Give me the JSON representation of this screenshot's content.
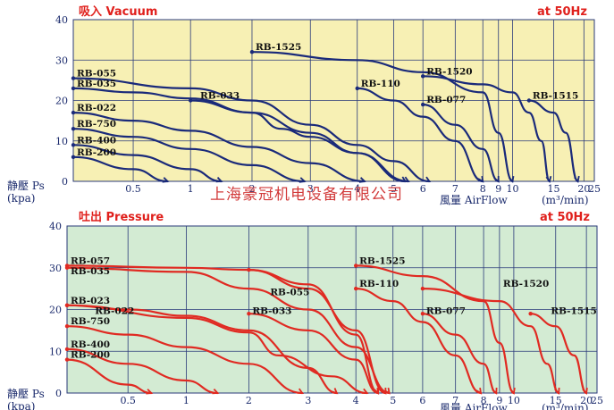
{
  "watermark": "上海豪冠机电设备有限公司",
  "colors": {
    "vacuum_bg": "#f7f0b4",
    "pressure_bg": "#d3ebd3",
    "vacuum_curve": "#1a2a7a",
    "pressure_curve": "#e02a22",
    "grid": "#2a3a7a",
    "title_red": "#e0201c"
  },
  "chart_data": [
    {
      "type": "line",
      "title": "吸入 Vacuum",
      "frequency": "at 50Hz",
      "ylabel": "静壓 Ps",
      "yunit": "(kpa)",
      "xlabel": "風量 AirFlow",
      "xunit": "(m³/min)",
      "ylim": [
        0,
        40
      ],
      "yticks": [
        "0",
        "10",
        "20",
        "30",
        "40"
      ],
      "xticks": [
        "0.5",
        "1",
        "2",
        "3",
        "4",
        "5",
        "6",
        "7",
        "8",
        "9",
        "10",
        "15",
        "20",
        "25"
      ],
      "grid": true,
      "series": [
        {
          "name": "RB-200",
          "values": [
            [
              0,
              6
            ],
            [
              0.5,
              3
            ],
            [
              0.8,
              0
            ]
          ]
        },
        {
          "name": "RB-400",
          "values": [
            [
              0,
              9
            ],
            [
              0.5,
              6.5
            ],
            [
              1,
              3
            ],
            [
              1.5,
              0
            ]
          ]
        },
        {
          "name": "RB-750",
          "values": [
            [
              0,
              13
            ],
            [
              0.5,
              11
            ],
            [
              1,
              8
            ],
            [
              2,
              4
            ],
            [
              2.9,
              0
            ]
          ]
        },
        {
          "name": "RB-022",
          "values": [
            [
              0,
              17
            ],
            [
              0.5,
              15
            ],
            [
              1,
              12.5
            ],
            [
              2,
              8.5
            ],
            [
              3,
              4.5
            ],
            [
              4.2,
              0
            ]
          ]
        },
        {
          "name": "RB-035",
          "values": [
            [
              0,
              23
            ],
            [
              0.5,
              22
            ],
            [
              1,
              20.5
            ],
            [
              2,
              17
            ],
            [
              3,
              12
            ],
            [
              4,
              7
            ],
            [
              5.5,
              0
            ]
          ]
        },
        {
          "name": "RB-055",
          "values": [
            [
              0,
              25.5
            ],
            [
              1,
              23
            ],
            [
              2,
              20
            ],
            [
              3,
              14
            ],
            [
              4,
              9
            ],
            [
              5,
              5
            ],
            [
              6.2,
              0
            ]
          ]
        },
        {
          "name": "RB-033",
          "values": [
            [
              1,
              20
            ],
            [
              2,
              17
            ],
            [
              2.5,
              13
            ],
            [
              3,
              11
            ],
            [
              4,
              7
            ],
            [
              5.4,
              0
            ]
          ]
        },
        {
          "name": "RB-1525",
          "values": [
            [
              2,
              32
            ],
            [
              4,
              30
            ],
            [
              6,
              27
            ],
            [
              8,
              22
            ],
            [
              9,
              12
            ],
            [
              10,
              0
            ]
          ]
        },
        {
          "name": "RB-110",
          "values": [
            [
              4,
              23
            ],
            [
              5,
              20
            ],
            [
              6,
              16
            ],
            [
              7,
              10
            ],
            [
              8,
              0
            ]
          ]
        },
        {
          "name": "RB-077",
          "values": [
            [
              6,
              19
            ],
            [
              7,
              14
            ],
            [
              8,
              8
            ],
            [
              9,
              0
            ]
          ]
        },
        {
          "name": "RB-1520",
          "values": [
            [
              6,
              26
            ],
            [
              8,
              24
            ],
            [
              10,
              22
            ],
            [
              12,
              17
            ],
            [
              13.5,
              10
            ],
            [
              14.5,
              0
            ]
          ]
        },
        {
          "name": "RB-1515",
          "values": [
            [
              12,
              20
            ],
            [
              15,
              17
            ],
            [
              17,
              12
            ],
            [
              19,
              0
            ]
          ]
        }
      ],
      "labels": [
        {
          "text": "RB-055",
          "x": 0,
          "y": 25.5
        },
        {
          "text": "RB-035",
          "x": 0,
          "y": 23
        },
        {
          "text": "RB-033",
          "x": 1.1,
          "y": 20
        },
        {
          "text": "RB-1525",
          "x": 2,
          "y": 32
        },
        {
          "text": "RB-110",
          "x": 4,
          "y": 23
        },
        {
          "text": "RB-1520",
          "x": 6,
          "y": 26
        },
        {
          "text": "RB-077",
          "x": 6,
          "y": 19
        },
        {
          "text": "RB-1515",
          "x": 12,
          "y": 20
        },
        {
          "text": "RB-022",
          "x": 0,
          "y": 17
        },
        {
          "text": "RB-750",
          "x": 0,
          "y": 13
        },
        {
          "text": "RB-400",
          "x": 0,
          "y": 9
        },
        {
          "text": "RB-200",
          "x": 0,
          "y": 6
        }
      ]
    },
    {
      "type": "line",
      "title": "吐出 Pressure",
      "frequency": "at 50Hz",
      "ylabel": "静壓 Ps",
      "yunit": "(kpa)",
      "xlabel": "風量 AirFlow",
      "xunit": "(m³/min)",
      "ylim": [
        0,
        40
      ],
      "yticks": [
        "0",
        "10",
        "20",
        "30",
        "40"
      ],
      "xticks": [
        "0.5",
        "1",
        "2",
        "3",
        "4",
        "5",
        "6",
        "7",
        "8",
        "9",
        "10",
        "15",
        "20",
        "25"
      ],
      "grid": true,
      "series": [
        {
          "name": "RB-200",
          "values": [
            [
              0,
              8
            ],
            [
              0.5,
              2
            ],
            [
              0.7,
              0
            ]
          ]
        },
        {
          "name": "RB-400",
          "values": [
            [
              0,
              10.5
            ],
            [
              0.5,
              7
            ],
            [
              1,
              3
            ],
            [
              1.5,
              0
            ]
          ]
        },
        {
          "name": "RB-750",
          "values": [
            [
              0,
              16
            ],
            [
              0.5,
              14
            ],
            [
              1,
              11
            ],
            [
              2,
              7
            ],
            [
              2.9,
              0
            ]
          ]
        },
        {
          "name": "RB-023",
          "values": [
            [
              0,
              21
            ],
            [
              0.5,
              20
            ],
            [
              1,
              18.5
            ],
            [
              2,
              15
            ],
            [
              3,
              6
            ],
            [
              3.6,
              0
            ]
          ]
        },
        {
          "name": "RB-022",
          "values": [
            [
              0,
              21
            ],
            [
              1,
              18
            ],
            [
              2,
              14.5
            ],
            [
              2.5,
              9
            ],
            [
              3.5,
              4
            ],
            [
              4.3,
              0
            ]
          ]
        },
        {
          "name": "RB-035",
          "values": [
            [
              0,
              30
            ],
            [
              1,
              29
            ],
            [
              2,
              25
            ],
            [
              3,
              20
            ],
            [
              4,
              11
            ],
            [
              4.9,
              0
            ]
          ]
        },
        {
          "name": "RB-057",
          "values": [
            [
              0,
              30.5
            ],
            [
              1,
              30
            ],
            [
              2,
              29.5
            ],
            [
              3,
              26
            ],
            [
              4,
              14
            ],
            [
              4.6,
              0
            ]
          ]
        },
        {
          "name": "RB-055",
          "values": [
            [
              2,
              29.5
            ],
            [
              3,
              25
            ],
            [
              4,
              15
            ],
            [
              4.8,
              0
            ]
          ]
        },
        {
          "name": "RB-033",
          "values": [
            [
              2,
              19
            ],
            [
              3,
              15
            ],
            [
              4,
              8
            ],
            [
              4.6,
              0
            ]
          ]
        },
        {
          "name": "RB-1525",
          "values": [
            [
              4,
              30.5
            ],
            [
              6,
              28
            ],
            [
              8,
              22
            ],
            [
              9,
              12
            ],
            [
              10,
              0
            ]
          ]
        },
        {
          "name": "RB-110",
          "values": [
            [
              4,
              25
            ],
            [
              5,
              22
            ],
            [
              6,
              17
            ],
            [
              7,
              9
            ],
            [
              7.9,
              0
            ]
          ]
        },
        {
          "name": "RB-077",
          "values": [
            [
              6,
              19
            ],
            [
              7,
              14
            ],
            [
              8,
              7
            ],
            [
              8.8,
              0
            ]
          ]
        },
        {
          "name": "RB-1520",
          "values": [
            [
              6,
              25
            ],
            [
              9,
              22
            ],
            [
              12,
              16
            ],
            [
              14,
              7
            ],
            [
              15.5,
              0
            ]
          ]
        },
        {
          "name": "RB-1515",
          "values": [
            [
              12,
              19
            ],
            [
              15,
              16
            ],
            [
              18,
              9
            ],
            [
              20,
              0
            ]
          ]
        }
      ],
      "labels": [
        {
          "text": "RB-057",
          "x": 0,
          "y": 30.5
        },
        {
          "text": "RB-035",
          "x": 0,
          "y": 28
        },
        {
          "text": "RB-1525",
          "x": 4,
          "y": 30.5
        },
        {
          "text": "RB-110",
          "x": 4,
          "y": 25
        },
        {
          "text": "RB-1520",
          "x": 9,
          "y": 25
        },
        {
          "text": "RB-055",
          "x": 2.3,
          "y": 23
        },
        {
          "text": "RB-023",
          "x": 0,
          "y": 21
        },
        {
          "text": "RB-022",
          "x": 0.2,
          "y": 18.5
        },
        {
          "text": "RB-033",
          "x": 2,
          "y": 18.5
        },
        {
          "text": "RB-077",
          "x": 6,
          "y": 18.5
        },
        {
          "text": "RB-1515",
          "x": 14,
          "y": 18.5
        },
        {
          "text": "RB-750",
          "x": 0,
          "y": 16
        },
        {
          "text": "RB-400",
          "x": 0,
          "y": 10.5
        },
        {
          "text": "RB-200",
          "x": 0,
          "y": 8
        }
      ]
    }
  ]
}
